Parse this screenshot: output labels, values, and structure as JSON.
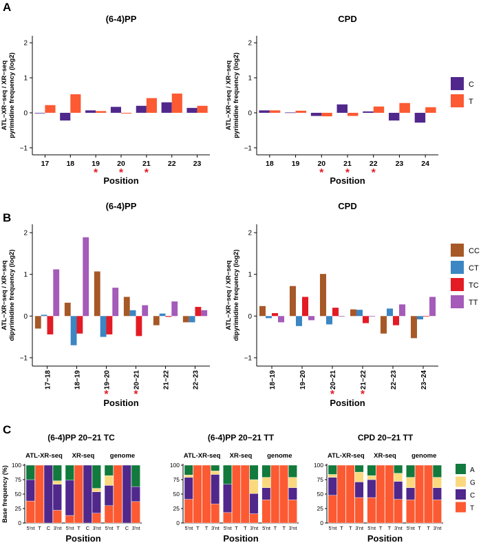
{
  "colors": {
    "C": "#50288c",
    "T": "#fc5a32",
    "CC": "#a75827",
    "CT": "#3b86c3",
    "TC": "#e21b25",
    "TT": "#a45bb9",
    "A": "#117a3c",
    "G": "#fad97e",
    "C3": "#50288c",
    "T3": "#fc5a32",
    "star": "#e21b25"
  },
  "panel_labels": {
    "a": "A",
    "b": "B",
    "c": "C"
  },
  "chart_data": [
    {
      "id": "A-64PP",
      "type": "bar",
      "title": "(6-4)PP",
      "ylabel_lines": [
        "ATL−XR−seq / XR−seq",
        "pyrimidine frequency (log2)"
      ],
      "xlabel": "Position",
      "ylim": [
        -1.2,
        2.2
      ],
      "yticks": [
        -1,
        0,
        1,
        2
      ],
      "categories": [
        "17",
        "18",
        "19",
        "20",
        "21",
        "22",
        "23"
      ],
      "series": [
        {
          "name": "C",
          "values": [
            0.0,
            -0.22,
            0.07,
            0.17,
            0.2,
            0.3,
            0.14
          ]
        },
        {
          "name": "T",
          "values": [
            0.22,
            0.53,
            0.05,
            -0.02,
            0.42,
            0.55,
            0.2
          ]
        }
      ],
      "stars": [
        "19",
        "20",
        "21"
      ]
    },
    {
      "id": "A-CPD",
      "type": "bar",
      "title": "CPD",
      "ylabel_lines": [
        "ATL−XR−seq / XR−seq",
        "pyrimidine frequency (log2)"
      ],
      "xlabel": "Position",
      "ylim": [
        -1.2,
        2.2
      ],
      "yticks": [
        -1,
        0,
        1,
        2
      ],
      "categories": [
        "18",
        "19",
        "20",
        "21",
        "22",
        "23",
        "24"
      ],
      "series": [
        {
          "name": "C",
          "values": [
            0.07,
            0.01,
            -0.09,
            0.24,
            0.04,
            -0.22,
            -0.28
          ]
        },
        {
          "name": "T",
          "values": [
            0.07,
            0.06,
            -0.1,
            -0.09,
            0.18,
            0.28,
            0.16
          ]
        }
      ],
      "stars": [
        "20",
        "21",
        "22"
      ],
      "legend": {
        "entries": [
          "C",
          "T"
        ]
      }
    },
    {
      "id": "B-64PP",
      "type": "bar",
      "title": "(6-4)PP",
      "ylabel_lines": [
        "ATL−XR−seq / XR−seq",
        "dipyrimidine frequency (log2)"
      ],
      "xlabel": "Position",
      "ylim": [
        -1.2,
        2.2
      ],
      "yticks": [
        -1,
        0,
        1,
        2
      ],
      "categories": [
        "17−18",
        "18−19",
        "19−20",
        "20−21",
        "21−22",
        "22−23"
      ],
      "series": [
        {
          "name": "CC",
          "values": [
            -0.3,
            0.32,
            1.07,
            0.46,
            -0.22,
            -0.15
          ]
        },
        {
          "name": "CT",
          "values": [
            0.03,
            -0.7,
            -0.5,
            0.14,
            0.06,
            -0.15
          ]
        },
        {
          "name": "TC",
          "values": [
            -0.44,
            -0.42,
            -0.44,
            -0.48,
            -0.02,
            0.22
          ]
        },
        {
          "name": "TT",
          "values": [
            1.12,
            1.89,
            0.68,
            0.26,
            0.35,
            0.14
          ]
        }
      ],
      "stars": [
        "19−20",
        "20−21"
      ]
    },
    {
      "id": "B-CPD",
      "type": "bar",
      "title": "CPD",
      "ylabel_lines": [
        "ATL−XR−seq / XR−seq",
        "dipyrimidine frequency (log2)"
      ],
      "xlabel": "Position",
      "ylim": [
        -1.2,
        2.2
      ],
      "yticks": [
        -1,
        0,
        1,
        2
      ],
      "categories": [
        "18−19",
        "19−20",
        "20−21",
        "21−22",
        "22−23",
        "23−24"
      ],
      "series": [
        {
          "name": "CC",
          "values": [
            0.24,
            0.72,
            1.01,
            0.16,
            -0.42,
            -0.53
          ]
        },
        {
          "name": "CT",
          "values": [
            -0.05,
            -0.24,
            -0.2,
            0.15,
            0.18,
            -0.08
          ]
        },
        {
          "name": "TC",
          "values": [
            0.07,
            0.46,
            0.2,
            -0.17,
            -0.22,
            0.0
          ]
        },
        {
          "name": "TT",
          "values": [
            -0.15,
            -0.1,
            0.0,
            0.0,
            0.28,
            0.46
          ]
        }
      ],
      "stars": [
        "20−21",
        "21−22"
      ],
      "legend": {
        "entries": [
          "CC",
          "CT",
          "TC",
          "TT"
        ]
      }
    },
    {
      "id": "C-64PP-TC",
      "type": "stacked-bar",
      "title": "(6-4)PP 20−21 TC",
      "ylabel": "Base frequency (%)",
      "xlabel": "Position",
      "yticks": [
        0,
        25,
        50,
        75,
        100
      ],
      "base_order": [
        "T",
        "C",
        "G",
        "A"
      ],
      "groups": [
        {
          "name": "ATL-XR-seq",
          "bars": [
            {
              "label": "5'nt",
              "A": 25,
              "G": 0,
              "C": 37,
              "T": 38
            },
            {
              "label": "T",
              "A": 0,
              "G": 0,
              "C": 0,
              "T": 100
            },
            {
              "label": "C",
              "A": 0,
              "G": 0,
              "C": 100,
              "T": 0
            },
            {
              "label": "3'nt",
              "A": 27,
              "G": 6,
              "C": 45,
              "T": 22
            }
          ]
        },
        {
          "name": "XR-seq",
          "bars": [
            {
              "label": "5'nt",
              "A": 26,
              "G": 0,
              "C": 61,
              "T": 13
            },
            {
              "label": "T",
              "A": 0,
              "G": 0,
              "C": 0,
              "T": 100
            },
            {
              "label": "C",
              "A": 0,
              "G": 0,
              "C": 100,
              "T": 0
            },
            {
              "label": "3'nt",
              "A": 40,
              "G": 6,
              "C": 37,
              "T": 17
            }
          ]
        },
        {
          "name": "genome",
          "bars": [
            {
              "label": "5'nt",
              "A": 18,
              "G": 17,
              "C": 35,
              "T": 30
            },
            {
              "label": "T",
              "A": 0,
              "G": 0,
              "C": 0,
              "T": 100
            },
            {
              "label": "C",
              "A": 0,
              "G": 0,
              "C": 100,
              "T": 0
            },
            {
              "label": "3'nt",
              "A": 37,
              "G": 0,
              "C": 26,
              "T": 37
            }
          ]
        }
      ]
    },
    {
      "id": "C-64PP-TT",
      "type": "stacked-bar",
      "title": "(6-4)PP 20−21 TT",
      "ylabel": "",
      "xlabel": "Position",
      "yticks": [
        0,
        25,
        50,
        75,
        100
      ],
      "base_order": [
        "T",
        "C",
        "G",
        "A"
      ],
      "groups": [
        {
          "name": "ATL-XR-seq",
          "bars": [
            {
              "label": "5'nt",
              "A": 17,
              "G": 4,
              "C": 38,
              "T": 41
            },
            {
              "label": "T",
              "A": 0,
              "G": 0,
              "C": 0,
              "T": 100
            },
            {
              "label": "T",
              "A": 0,
              "G": 0,
              "C": 0,
              "T": 100
            },
            {
              "label": "3'nt",
              "A": 10,
              "G": 6,
              "C": 51,
              "T": 33
            }
          ]
        },
        {
          "name": "XR-seq",
          "bars": [
            {
              "label": "5'nt",
              "A": 33,
              "G": 0,
              "C": 49,
              "T": 18
            },
            {
              "label": "T",
              "A": 0,
              "G": 0,
              "C": 0,
              "T": 100
            },
            {
              "label": "T",
              "A": 0,
              "G": 0,
              "C": 0,
              "T": 100
            },
            {
              "label": "3'nt",
              "A": 25,
              "G": 24,
              "C": 35,
              "T": 16
            }
          ]
        },
        {
          "name": "genome",
          "bars": [
            {
              "label": "5'nt",
              "A": 21,
              "G": 18,
              "C": 21,
              "T": 40
            },
            {
              "label": "T",
              "A": 0,
              "G": 0,
              "C": 0,
              "T": 100
            },
            {
              "label": "T",
              "A": 0,
              "G": 0,
              "C": 0,
              "T": 100
            },
            {
              "label": "3'nt",
              "A": 21,
              "G": 18,
              "C": 21,
              "T": 40
            }
          ]
        }
      ]
    },
    {
      "id": "C-CPD-TT",
      "type": "stacked-bar",
      "title": "CPD 20−21 TT",
      "ylabel": "",
      "xlabel": "Position",
      "yticks": [
        0,
        25,
        50,
        75,
        100
      ],
      "base_order": [
        "T",
        "C",
        "G",
        "A"
      ],
      "groups": [
        {
          "name": "ATL-XR-seq",
          "bars": [
            {
              "label": "5'nt",
              "A": 16,
              "G": 5,
              "C": 31,
              "T": 48
            },
            {
              "label": "T",
              "A": 0,
              "G": 0,
              "C": 0,
              "T": 100
            },
            {
              "label": "T",
              "A": 0,
              "G": 0,
              "C": 0,
              "T": 100
            },
            {
              "label": "3'nt",
              "A": 12,
              "G": 17,
              "C": 27,
              "T": 44
            }
          ]
        },
        {
          "name": "XR-seq",
          "bars": [
            {
              "label": "5'nt",
              "A": 18,
              "G": 7,
              "C": 31,
              "T": 44
            },
            {
              "label": "T",
              "A": 0,
              "G": 0,
              "C": 0,
              "T": 100
            },
            {
              "label": "T",
              "A": 0,
              "G": 0,
              "C": 0,
              "T": 100
            },
            {
              "label": "3'nt",
              "A": 14,
              "G": 14,
              "C": 31,
              "T": 41
            }
          ]
        },
        {
          "name": "genome",
          "bars": [
            {
              "label": "5'nt",
              "A": 21,
              "G": 18,
              "C": 21,
              "T": 40
            },
            {
              "label": "T",
              "A": 0,
              "G": 0,
              "C": 0,
              "T": 100
            },
            {
              "label": "T",
              "A": 0,
              "G": 0,
              "C": 0,
              "T": 100
            },
            {
              "label": "3'nt",
              "A": 21,
              "G": 18,
              "C": 21,
              "T": 40
            }
          ]
        }
      ],
      "legend": {
        "entries": [
          "A",
          "G",
          "C",
          "T"
        ]
      }
    }
  ]
}
